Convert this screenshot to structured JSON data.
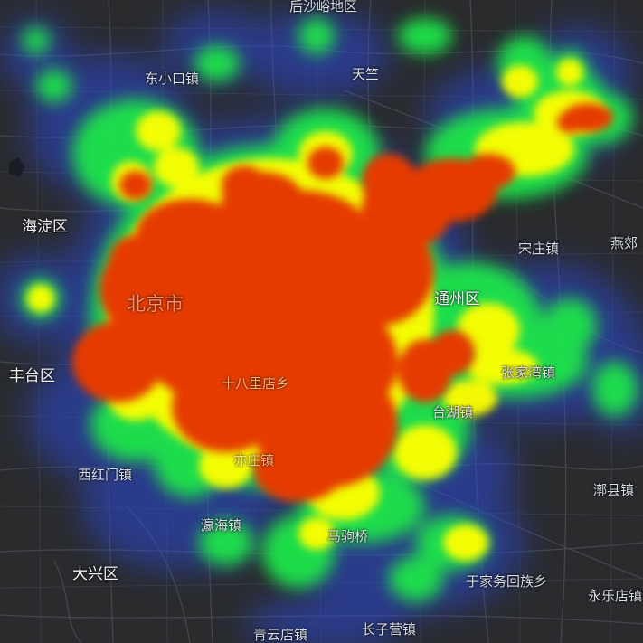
{
  "map": {
    "background_color": "#2a2b2d",
    "road_color": "#4a4c50",
    "heat_ramp": [
      "#1b2270",
      "#2a49d6",
      "#1ee54a",
      "#ffff00",
      "#ff7700",
      "#e53a05"
    ]
  },
  "labels": {
    "houshayu": "后沙峪地区",
    "dongxiaokou": "东小口镇",
    "tianzhu": "天竺",
    "haidian": "海淀区",
    "songzhuang": "宋庄镇",
    "yanjiao": "燕郊",
    "beijing": "北京市",
    "tongzhou": "通州区",
    "fengtai": "丰台区",
    "shibalidian": "十八里店乡",
    "zhangjiawan": "张家湾镇",
    "taihu": "台湖镇",
    "xihongmen": "西红门镇",
    "jiuxianqiao": "旧宫镇",
    "yingzhai": "亦庄镇",
    "yinghai": "瀛海镇",
    "majuqiao": "马驹桥",
    "daxing": "大兴区",
    "yujiawu": "于家务回族乡",
    "yongledian": "永乐店镇",
    "qingyundian": "青云店镇",
    "changziying": "长子营镇",
    "daoxian": "漷县镇"
  }
}
